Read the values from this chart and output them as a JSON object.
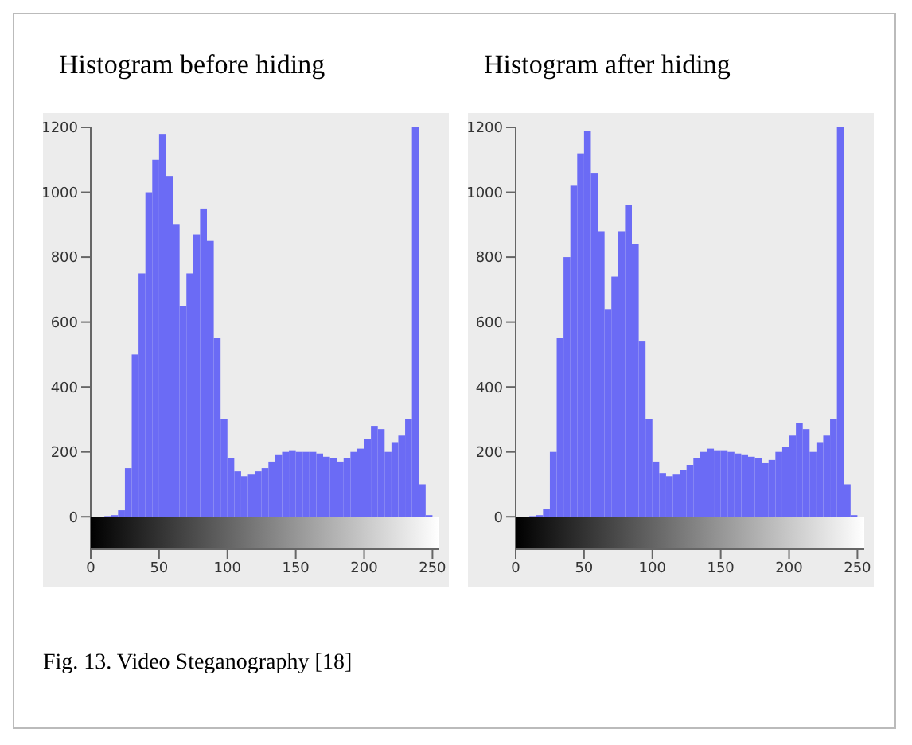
{
  "chart_data": [
    {
      "type": "histogram",
      "title": "Histogram before hiding",
      "color": "#6b6bf5",
      "bins": [
        0,
        5,
        10,
        15,
        20,
        25,
        30,
        35,
        40,
        45,
        50,
        55,
        60,
        65,
        70,
        75,
        80,
        85,
        90,
        95,
        100,
        105,
        110,
        115,
        120,
        125,
        130,
        135,
        140,
        145,
        150,
        155,
        160,
        165,
        170,
        175,
        180,
        185,
        190,
        195,
        200,
        205,
        210,
        215,
        220,
        225,
        230,
        235,
        240,
        245,
        250,
        255
      ],
      "values": [
        0,
        0,
        2,
        5,
        20,
        150,
        500,
        750,
        1000,
        1100,
        1180,
        1050,
        900,
        650,
        750,
        870,
        950,
        850,
        550,
        300,
        180,
        140,
        125,
        130,
        140,
        150,
        170,
        190,
        200,
        205,
        200,
        200,
        200,
        195,
        185,
        180,
        170,
        180,
        200,
        210,
        240,
        280,
        270,
        200,
        230,
        250,
        300,
        1200,
        100,
        5,
        0
      ],
      "xlim": [
        0,
        255
      ],
      "xticks": [
        0,
        50,
        100,
        150,
        200,
        250
      ],
      "ylim": [
        -100,
        1200
      ],
      "yticks": [
        0,
        200,
        400,
        600,
        800,
        1000,
        1200
      ]
    },
    {
      "type": "histogram",
      "title": "Histogram after hiding",
      "color": "#6b6bf5",
      "bins": [
        0,
        5,
        10,
        15,
        20,
        25,
        30,
        35,
        40,
        45,
        50,
        55,
        60,
        65,
        70,
        75,
        80,
        85,
        90,
        95,
        100,
        105,
        110,
        115,
        120,
        125,
        130,
        135,
        140,
        145,
        150,
        155,
        160,
        165,
        170,
        175,
        180,
        185,
        190,
        195,
        200,
        205,
        210,
        215,
        220,
        225,
        230,
        235,
        240,
        245,
        250,
        255
      ],
      "values": [
        0,
        0,
        2,
        5,
        25,
        200,
        550,
        800,
        1020,
        1120,
        1190,
        1060,
        880,
        640,
        740,
        880,
        960,
        840,
        540,
        300,
        170,
        135,
        125,
        130,
        145,
        160,
        180,
        200,
        210,
        205,
        205,
        200,
        195,
        190,
        185,
        180,
        165,
        175,
        200,
        215,
        250,
        290,
        270,
        200,
        230,
        250,
        300,
        1200,
        100,
        5,
        0
      ],
      "xlim": [
        0,
        255
      ],
      "xticks": [
        0,
        50,
        100,
        150,
        200,
        250
      ],
      "ylim": [
        -100,
        1200
      ],
      "yticks": [
        0,
        200,
        400,
        600,
        800,
        1000,
        1200
      ],
      "annotations": [
        "Fig. 13. Video Steganography [18]"
      ]
    }
  ]
}
